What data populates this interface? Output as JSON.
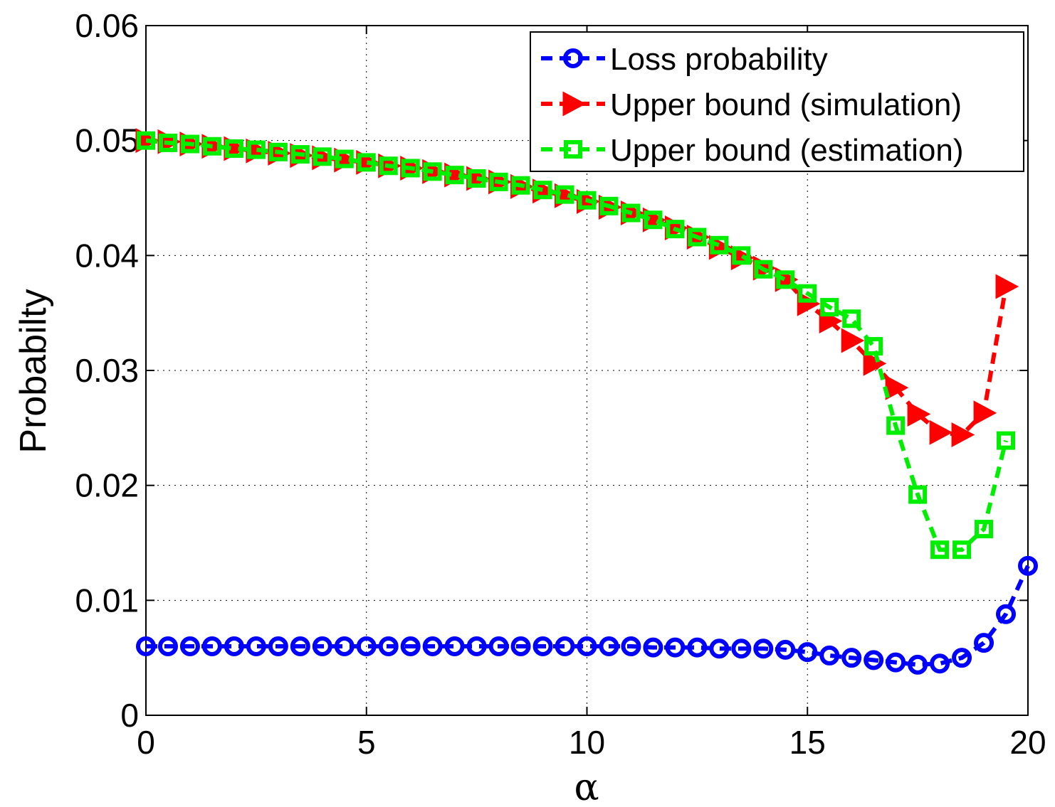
{
  "chart_data": {
    "type": "line",
    "title": "",
    "xlabel": "α",
    "ylabel": "Probabilty",
    "xlim": [
      0,
      20
    ],
    "ylim": [
      0,
      0.06
    ],
    "xticks": [
      0,
      5,
      10,
      15,
      20
    ],
    "yticks": [
      0,
      0.01,
      0.02,
      0.03,
      0.04,
      0.05,
      0.06
    ],
    "xtick_labels": [
      "0",
      "5",
      "10",
      "15",
      "20"
    ],
    "ytick_labels": [
      "0",
      "0.01",
      "0.02",
      "0.03",
      "0.04",
      "0.05",
      "0.06"
    ],
    "grid": true,
    "legend_position": "top-right",
    "series": [
      {
        "name": "Loss probability",
        "color": "#0000ff",
        "marker": "circle",
        "x": [
          0,
          0.5,
          1,
          1.5,
          2,
          2.5,
          3,
          3.5,
          4,
          4.5,
          5,
          5.5,
          6,
          6.5,
          7,
          7.5,
          8,
          8.5,
          9,
          9.5,
          10,
          10.5,
          11,
          11.5,
          12,
          12.5,
          13,
          13.5,
          14,
          14.5,
          15,
          15.5,
          16,
          16.5,
          17,
          17.5,
          18,
          18.5,
          19,
          19.5,
          20
        ],
        "values": [
          0.006,
          0.006,
          0.006,
          0.006,
          0.006,
          0.006,
          0.006,
          0.006,
          0.006,
          0.006,
          0.006,
          0.006,
          0.006,
          0.006,
          0.006,
          0.006,
          0.006,
          0.006,
          0.006,
          0.006,
          0.006,
          0.006,
          0.006,
          0.0059,
          0.0059,
          0.0059,
          0.0058,
          0.0058,
          0.0058,
          0.0057,
          0.0055,
          0.0052,
          0.005,
          0.0048,
          0.0046,
          0.0044,
          0.0045,
          0.005,
          0.0063,
          0.0088,
          0.013
        ]
      },
      {
        "name": "Upper bound (simulation)",
        "color": "#ff0000",
        "marker": "triangle-right",
        "x": [
          0,
          0.5,
          1,
          1.5,
          2,
          2.5,
          3,
          3.5,
          4,
          4.5,
          5,
          5.5,
          6,
          6.5,
          7,
          7.5,
          8,
          8.5,
          9,
          9.5,
          10,
          10.5,
          11,
          11.5,
          12,
          12.5,
          13,
          13.5,
          14,
          14.5,
          15,
          15.5,
          16,
          16.5,
          17,
          17.5,
          18,
          18.5,
          19,
          19.5
        ],
        "values": [
          0.05,
          0.0499,
          0.0497,
          0.0495,
          0.0493,
          0.0491,
          0.0489,
          0.0487,
          0.0485,
          0.0483,
          0.0481,
          0.0478,
          0.0476,
          0.0473,
          0.047,
          0.0467,
          0.0464,
          0.046,
          0.0456,
          0.0452,
          0.0447,
          0.0442,
          0.0437,
          0.0431,
          0.0424,
          0.0416,
          0.0407,
          0.0398,
          0.0389,
          0.0379,
          0.0358,
          0.0343,
          0.0326,
          0.0306,
          0.0285,
          0.0262,
          0.0246,
          0.0244,
          0.0263,
          0.0373
        ]
      },
      {
        "name": "Upper bound (estimation)",
        "color": "#00ee00",
        "marker": "square",
        "x": [
          0,
          0.5,
          1,
          1.5,
          2,
          2.5,
          3,
          3.5,
          4,
          4.5,
          5,
          5.5,
          6,
          6.5,
          7,
          7.5,
          8,
          8.5,
          9,
          9.5,
          10,
          10.5,
          11,
          11.5,
          12,
          12.5,
          13,
          13.5,
          14,
          14.5,
          15,
          15.5,
          16,
          16.5,
          17,
          17.5,
          18,
          18.5,
          19,
          19.5
        ],
        "values": [
          0.05,
          0.0498,
          0.0497,
          0.0495,
          0.0493,
          0.0492,
          0.049,
          0.0488,
          0.0486,
          0.0484,
          0.0481,
          0.0478,
          0.0476,
          0.0473,
          0.047,
          0.0467,
          0.0464,
          0.0461,
          0.0457,
          0.0453,
          0.0448,
          0.0443,
          0.0437,
          0.0431,
          0.0423,
          0.0416,
          0.0409,
          0.04,
          0.0388,
          0.0379,
          0.0367,
          0.0355,
          0.0345,
          0.0321,
          0.0252,
          0.0192,
          0.0144,
          0.0144,
          0.0162,
          0.0239
        ]
      }
    ]
  }
}
